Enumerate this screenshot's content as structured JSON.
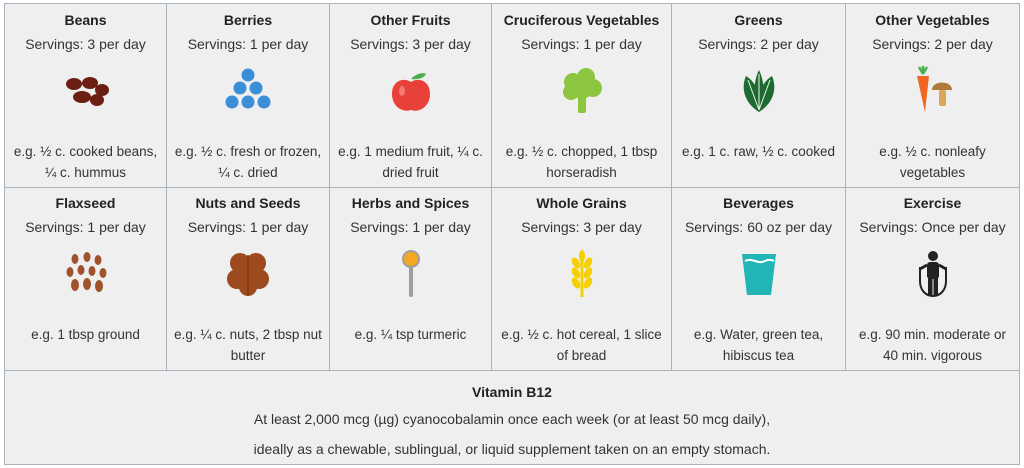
{
  "row1": [
    {
      "title": "Beans",
      "servings": "Servings: 3 per day",
      "example": "e.g. ½ c. cooked beans, ¼ c. hummus",
      "icon": "beans-icon"
    },
    {
      "title": "Berries",
      "servings": "Servings: 1 per day",
      "example": "e.g. ½ c. fresh or frozen, ¼ c. dried",
      "icon": "berries-icon"
    },
    {
      "title": "Other Fruits",
      "servings": "Servings: 3 per day",
      "example": "e.g. 1 medium fruit, ¼ c. dried fruit",
      "icon": "apple-icon"
    },
    {
      "title": "Cruciferous Vegetables",
      "servings": "Servings: 1 per day",
      "example": "e.g. ½ c. chopped, 1 tbsp horseradish",
      "icon": "broccoli-icon"
    },
    {
      "title": "Greens",
      "servings": "Servings: 2 per day",
      "example": "e.g. 1 c. raw, ½ c. cooked",
      "icon": "leafy-greens-icon"
    },
    {
      "title": "Other Vegetables",
      "servings": "Servings: 2 per day",
      "example": "e.g. ½ c. nonleafy vegetables",
      "icon": "carrot-mushroom-icon"
    }
  ],
  "row2": [
    {
      "title": "Flaxseed",
      "servings": "Servings: 1 per day",
      "example": "e.g. 1 tbsp ground",
      "icon": "flaxseed-icon"
    },
    {
      "title": "Nuts and Seeds",
      "servings": "Servings: 1 per day",
      "example": "e.g. ¼ c. nuts, 2 tbsp nut butter",
      "icon": "walnut-icon"
    },
    {
      "title": "Herbs and Spices",
      "servings": "Servings: 1 per day",
      "example": "e.g. ¼ tsp turmeric",
      "icon": "spice-spoon-icon"
    },
    {
      "title": "Whole Grains",
      "servings": "Servings: 3 per day",
      "example": "e.g. ½ c. hot cereal, 1 slice of bread",
      "icon": "wheat-icon"
    },
    {
      "title": "Beverages",
      "servings": "Servings: 60 oz per day",
      "example": "e.g. Water, green tea, hibiscus tea",
      "icon": "glass-icon"
    },
    {
      "title": "Exercise",
      "servings": "Servings: Once per day",
      "example": "e.g. 90 min. moderate or 40 min. vigorous",
      "icon": "jump-rope-icon"
    }
  ],
  "b12": {
    "title": "Vitamin B12",
    "line1": "At least 2,000 mcg (µg) cyanocobalamin once each week (or at least 50 mcg daily),",
    "line2": "ideally as a chewable, sublingual, or liquid supplement taken on an empty stomach."
  },
  "colors": {
    "beans": "#6b1e12",
    "berries": "#3a8fd6",
    "apple": "#e8413a",
    "broccoli": "#8cc63f",
    "greens": "#1e6b32",
    "carrot": "#f26522",
    "mushroom": "#b07a3a",
    "flax": "#a0522d",
    "walnut": "#9c4a1e",
    "spoon": "#f5a623",
    "wheat": "#f5d000",
    "glass": "#22b5b5",
    "person": "#222222"
  }
}
